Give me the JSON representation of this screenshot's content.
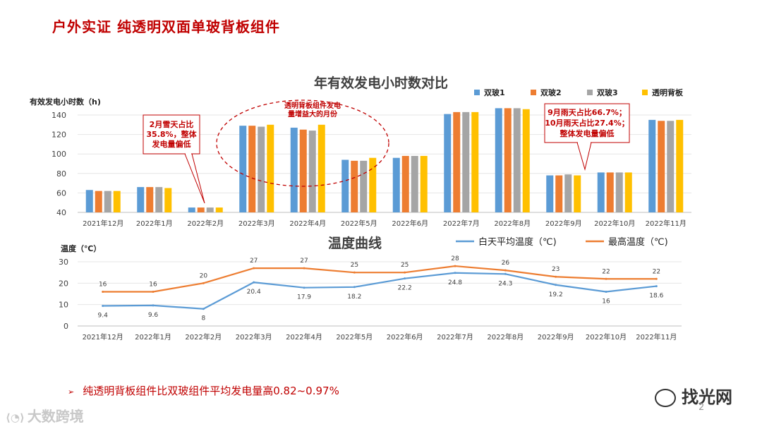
{
  "page": {
    "title": "户外实证  纯透明双面单玻背板组件",
    "bullet": "纯透明背板组件比双玻组件平均发电量高0.82~0.97%",
    "page_number": "2",
    "watermark_left": "大数跨境",
    "watermark_right": "找光网"
  },
  "colors": {
    "series": [
      "#5b9bd5",
      "#ed7d31",
      "#a5a5a5",
      "#ffc000"
    ],
    "accent": "#c00000",
    "day_avg": "#5b9bd5",
    "max_temp": "#ed7d31"
  },
  "chart_data": [
    {
      "type": "bar",
      "title": "年有效发电小时数对比",
      "ylabel": "有效发电小时数（h)",
      "ylim": [
        40,
        140
      ],
      "yticks": [
        40,
        60,
        80,
        100,
        120,
        140
      ],
      "categories": [
        "2021年12月",
        "2022年1月",
        "2022年2月",
        "2022年3月",
        "2022年4月",
        "2022年5月",
        "2022年6月",
        "2022年7月",
        "2022年8月",
        "2022年9月",
        "2022年10月",
        "2022年11月"
      ],
      "series": [
        {
          "name": "双玻1",
          "values": [
            63,
            66,
            45,
            129,
            127,
            94,
            96,
            141,
            147,
            78,
            81,
            135
          ]
        },
        {
          "name": "双玻2",
          "values": [
            62,
            66,
            45,
            129,
            125,
            93,
            98,
            143,
            147,
            78,
            81,
            134
          ]
        },
        {
          "name": "双玻3",
          "values": [
            62,
            66,
            45,
            128,
            124,
            93,
            98,
            143,
            147,
            79,
            81,
            134
          ]
        },
        {
          "name": "透明背板",
          "values": [
            62,
            65,
            45,
            130,
            130,
            96,
            98,
            143,
            146,
            78,
            81,
            135
          ]
        }
      ],
      "annotations": [
        {
          "text": [
            "2月雪天占比",
            "35.8%，整体",
            "发电量偏低"
          ]
        },
        {
          "text": [
            "透明背板组件发电",
            "量增益大的月份"
          ]
        },
        {
          "text": [
            "9月雨天占比66.7%；",
            "10月雨天占比27.4%；",
            "整体发电量偏低"
          ]
        }
      ]
    },
    {
      "type": "line",
      "title": "温度曲线",
      "ylabel": "温度（℃）",
      "ylim": [
        0,
        30
      ],
      "yticks": [
        0,
        10,
        20,
        30
      ],
      "categories": [
        "2021年12月",
        "2022年1月",
        "2022年2月",
        "2022年3月",
        "2022年4月",
        "2022年5月",
        "2022年6月",
        "2022年7月",
        "2022年8月",
        "2022年9月",
        "2022年10月",
        "2022年11月"
      ],
      "series": [
        {
          "name": "白天平均温度（℃)",
          "values": [
            9.4,
            9.6,
            8,
            20.4,
            17.9,
            18.2,
            22.2,
            24.8,
            24.3,
            19.2,
            16,
            18.6
          ]
        },
        {
          "name": "最高温度（℃)",
          "values": [
            16,
            16,
            20,
            27,
            27,
            25,
            25,
            28,
            26,
            23,
            22,
            22
          ]
        }
      ]
    }
  ]
}
